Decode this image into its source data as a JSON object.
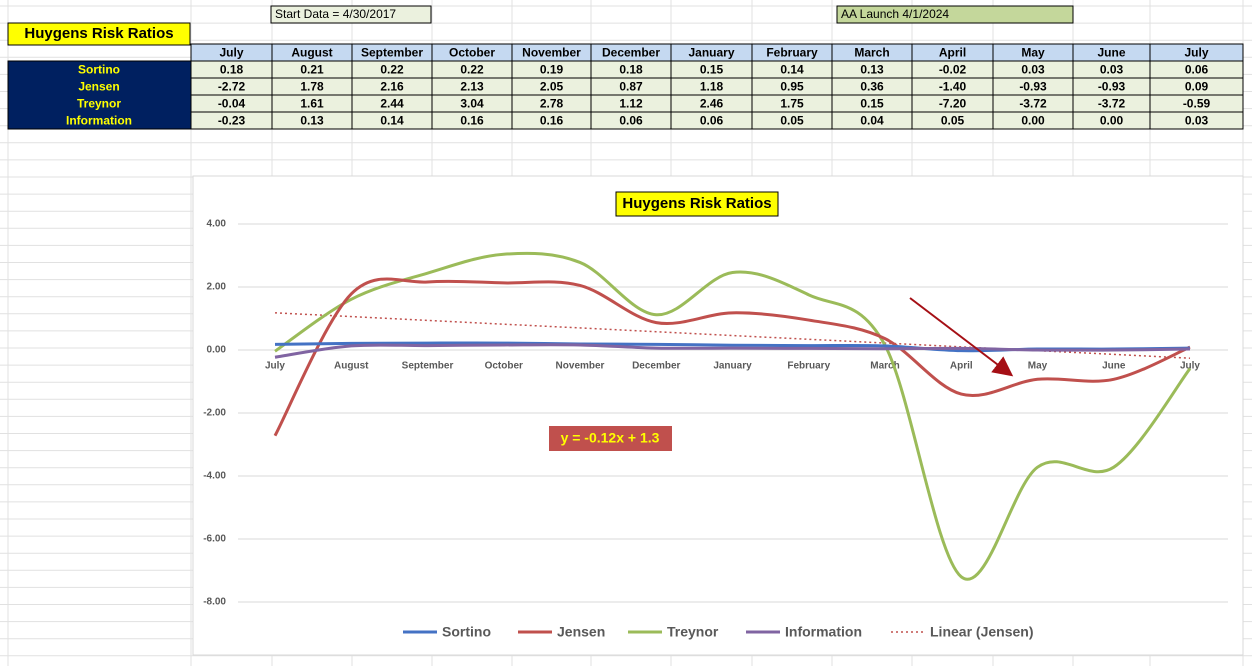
{
  "sheet": {
    "title": "Huygens Risk Ratios",
    "start_note": "Start Data = 4/30/2017",
    "launch_note": "AA Launch 4/1/2024"
  },
  "table": {
    "columns": [
      "July",
      "August",
      "September",
      "October",
      "November",
      "December",
      "January",
      "February",
      "March",
      "April",
      "May",
      "June",
      "July"
    ],
    "rows": [
      {
        "label": "Sortino",
        "values": [
          "0.18",
          "0.21",
          "0.22",
          "0.22",
          "0.19",
          "0.18",
          "0.15",
          "0.14",
          "0.13",
          "-0.02",
          "0.03",
          "0.03",
          "0.06"
        ]
      },
      {
        "label": "Jensen",
        "values": [
          "-2.72",
          "1.78",
          "2.16",
          "2.13",
          "2.05",
          "0.87",
          "1.18",
          "0.95",
          "0.36",
          "-1.40",
          "-0.93",
          "-0.93",
          "0.09"
        ]
      },
      {
        "label": "Treynor",
        "values": [
          "-0.04",
          "1.61",
          "2.44",
          "3.04",
          "2.78",
          "1.12",
          "2.46",
          "1.75",
          "0.15",
          "-7.20",
          "-3.72",
          "-3.72",
          "-0.59"
        ]
      },
      {
        "label": "Information",
        "values": [
          "-0.23",
          "0.13",
          "0.14",
          "0.16",
          "0.16",
          "0.06",
          "0.06",
          "0.05",
          "0.04",
          "0.05",
          "0.00",
          "0.00",
          "0.03"
        ]
      }
    ]
  },
  "chart_data": {
    "type": "line",
    "title": "Huygens Risk Ratios",
    "categories": [
      "July",
      "August",
      "September",
      "October",
      "November",
      "December",
      "January",
      "February",
      "March",
      "April",
      "May",
      "June",
      "July"
    ],
    "series": [
      {
        "name": "Sortino",
        "color": "#4472c4",
        "values": [
          0.18,
          0.21,
          0.22,
          0.22,
          0.19,
          0.18,
          0.15,
          0.14,
          0.13,
          -0.02,
          0.03,
          0.03,
          0.06
        ]
      },
      {
        "name": "Jensen",
        "color": "#c0504d",
        "values": [
          -2.72,
          1.78,
          2.16,
          2.13,
          2.05,
          0.87,
          1.18,
          0.95,
          0.36,
          -1.4,
          -0.93,
          -0.93,
          0.09
        ]
      },
      {
        "name": "Treynor",
        "color": "#9bbb59",
        "values": [
          -0.04,
          1.61,
          2.44,
          3.04,
          2.78,
          1.12,
          2.46,
          1.75,
          0.15,
          -7.2,
          -3.72,
          -3.72,
          -0.59
        ]
      },
      {
        "name": "Information",
        "color": "#8064a2",
        "values": [
          -0.23,
          0.13,
          0.14,
          0.16,
          0.16,
          0.06,
          0.06,
          0.05,
          0.04,
          0.05,
          0.0,
          0.0,
          0.03
        ]
      }
    ],
    "trendline": {
      "name": "Linear (Jensen)",
      "color": "#c0504d",
      "slope": -0.12,
      "intercept": 1.3,
      "label": "y = -0.12x + 1.3"
    },
    "ylim": [
      -8,
      4
    ],
    "yticks": [
      {
        "value": -8,
        "label": "-8.00"
      },
      {
        "value": -6,
        "label": "-6.00"
      },
      {
        "value": -4,
        "label": "-4.00"
      },
      {
        "value": -2,
        "label": "-2.00"
      },
      {
        "value": 0,
        "label": "0.00"
      },
      {
        "value": 2,
        "label": "2.00"
      },
      {
        "value": 4,
        "label": "4.00"
      }
    ],
    "grid": true
  }
}
